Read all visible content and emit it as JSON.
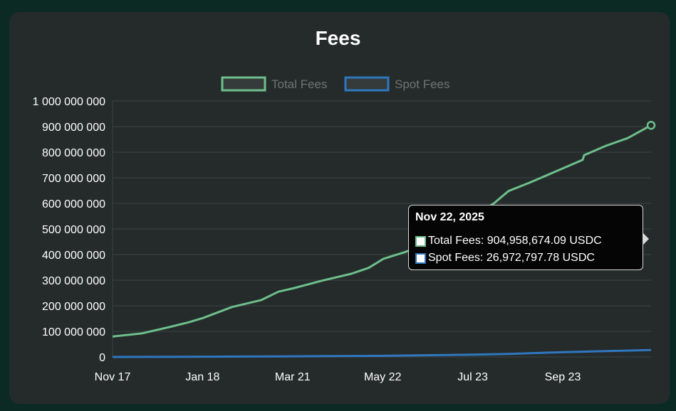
{
  "title": "Fees",
  "chart_data": {
    "type": "line",
    "title": "Fees",
    "x_ticks": [
      "Nov 17",
      "Jan 18",
      "Mar 21",
      "May 22",
      "Jul 23",
      "Sep 23"
    ],
    "y_ticks": [
      "1 000 000 000",
      "900 000 000",
      "800 000 000",
      "700 000 000",
      "600 000 000",
      "500 000 000",
      "400 000 000",
      "300 000 000",
      "200 000 000",
      "100 000 000",
      "0"
    ],
    "ylim": [
      0,
      1000000000
    ],
    "x_range": [
      "2024-11-17",
      "2025-11-22"
    ],
    "grid": true,
    "legend_position": "top",
    "series": [
      {
        "name": "Total Fees",
        "color": "#6dbf8c",
        "x": [
          "2024-11-17",
          "2024-12-07",
          "2024-12-27",
          "2025-01-08",
          "2025-01-18",
          "2025-02-07",
          "2025-02-27",
          "2025-03-11",
          "2025-03-21",
          "2025-04-10",
          "2025-04-30",
          "2025-05-12",
          "2025-05-22",
          "2025-06-06",
          "2025-06-21",
          "2025-07-03",
          "2025-07-23",
          "2025-08-06",
          "2025-08-16",
          "2025-08-31",
          "2025-09-23",
          "2025-10-06",
          "2025-10-07",
          "2025-10-22",
          "2025-11-06",
          "2025-11-22"
        ],
        "y": [
          80000000,
          92000000,
          118000000,
          135000000,
          152000000,
          195000000,
          222000000,
          255000000,
          268000000,
          298000000,
          325000000,
          348000000,
          383000000,
          410000000,
          440000000,
          480000000,
          548000000,
          600000000,
          648000000,
          682000000,
          738000000,
          770000000,
          788000000,
          825000000,
          855000000,
          904958674
        ]
      },
      {
        "name": "Spot Fees",
        "color": "#2f77c0",
        "x": [
          "2024-11-17",
          "2025-01-18",
          "2025-03-21",
          "2025-05-22",
          "2025-07-23",
          "2025-08-16",
          "2025-09-23",
          "2025-10-22",
          "2025-11-22"
        ],
        "y": [
          0,
          1000000,
          2500000,
          4500000,
          9000000,
          12000000,
          19000000,
          23000000,
          26972797
        ]
      }
    ]
  },
  "tooltip": {
    "title": "Nov 22, 2025",
    "rows": [
      {
        "text": "Total Fees: 904,958,674.09 USDC",
        "border": "#6dbf8c"
      },
      {
        "text": "Spot Fees: 26,972,797.78 USDC",
        "border": "#2f77c0"
      }
    ]
  }
}
